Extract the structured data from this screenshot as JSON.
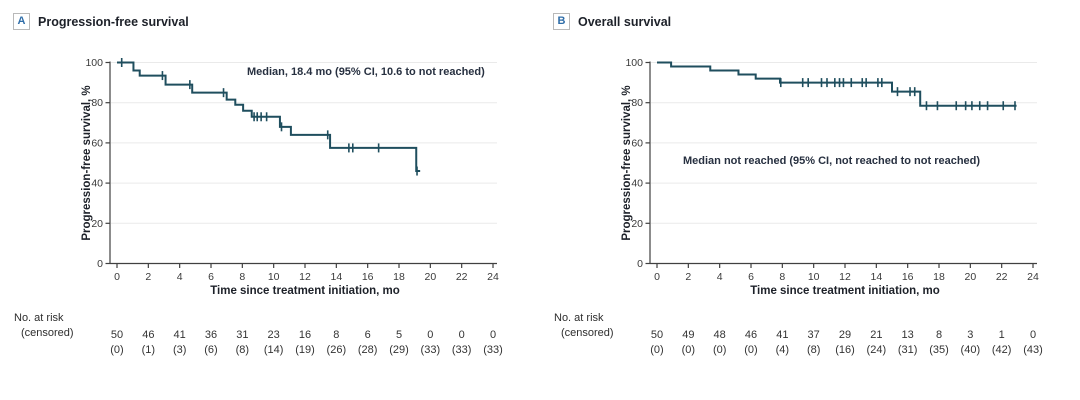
{
  "style": {
    "curve_color": "#1f4e5e",
    "grid_color": "#eaeaea",
    "axis_color": "#404040",
    "tick_text_color": "#3a3a3a",
    "risk_text_color": "#333333",
    "panel_letter_color": "#2f6da8",
    "title_color": "#1d2129",
    "annotation_color": "#273040"
  },
  "chart_data": [
    {
      "type": "line",
      "subtype": "kaplan-meier-step-curve",
      "panel_label": "A",
      "title": "Progression-free survival",
      "annotation": "Median, 18.4 mo (95% CI, 10.6 to not reached)",
      "xlabel": "Time since treatment initiation, mo",
      "ylabel": "Progression-free survival, %",
      "xlim": [
        0,
        24
      ],
      "ylim": [
        0,
        100
      ],
      "xticks": [
        0,
        2,
        4,
        6,
        8,
        10,
        12,
        14,
        16,
        18,
        20,
        22,
        24
      ],
      "yticks": [
        0,
        20,
        40,
        60,
        80,
        100
      ],
      "grid": "horizontal",
      "steps": [
        [
          0,
          100
        ],
        [
          1.05,
          96
        ],
        [
          1.45,
          93.5
        ],
        [
          3.1,
          89
        ],
        [
          4.8,
          85
        ],
        [
          7.0,
          81.5
        ],
        [
          7.55,
          79
        ],
        [
          8.05,
          76
        ],
        [
          8.6,
          73
        ],
        [
          10.4,
          68
        ],
        [
          11.1,
          64
        ],
        [
          13.6,
          57.5
        ],
        [
          19.1,
          46
        ]
      ],
      "curve_end_month": 19.35,
      "censor_marks": [
        [
          0.3,
          100
        ],
        [
          2.9,
          93.5
        ],
        [
          4.65,
          89
        ],
        [
          6.8,
          85
        ],
        [
          8.75,
          73
        ],
        [
          8.95,
          73
        ],
        [
          9.2,
          73
        ],
        [
          9.55,
          73
        ],
        [
          10.5,
          68
        ],
        [
          13.45,
          64
        ],
        [
          14.8,
          57.5
        ],
        [
          15.05,
          57.5
        ],
        [
          16.7,
          57.5
        ],
        [
          19.15,
          46
        ]
      ],
      "risk_label": "No. at risk",
      "censored_label": "(censored)",
      "at_risk": [
        50,
        46,
        41,
        36,
        31,
        23,
        16,
        8,
        6,
        5,
        0,
        0,
        0
      ],
      "censored": [
        "(0)",
        "(1)",
        "(3)",
        "(6)",
        "(8)",
        "(14)",
        "(19)",
        "(26)",
        "(28)",
        "(29)",
        "(33)",
        "(33)",
        "(33)"
      ]
    },
    {
      "type": "line",
      "subtype": "kaplan-meier-step-curve",
      "panel_label": "B",
      "title": "Overall survival",
      "annotation": "Median not reached (95% CI, not reached to not reached)",
      "xlabel": "Time since treatment initiation, mo",
      "ylabel": "Progression-free survival, %",
      "xlim": [
        0,
        24
      ],
      "ylim": [
        0,
        100
      ],
      "xticks": [
        0,
        2,
        4,
        6,
        8,
        10,
        12,
        14,
        16,
        18,
        20,
        22,
        24
      ],
      "yticks": [
        0,
        20,
        40,
        60,
        80,
        100
      ],
      "grid": "horizontal",
      "steps": [
        [
          0,
          100
        ],
        [
          0.9,
          98
        ],
        [
          3.4,
          96
        ],
        [
          5.2,
          94
        ],
        [
          6.3,
          92
        ],
        [
          7.85,
          90
        ],
        [
          15.0,
          85.5
        ],
        [
          16.8,
          78.5
        ]
      ],
      "curve_end_month": 22.95,
      "censor_marks": [
        [
          7.9,
          90
        ],
        [
          9.3,
          90
        ],
        [
          9.65,
          90
        ],
        [
          10.5,
          90
        ],
        [
          10.85,
          90
        ],
        [
          11.35,
          90
        ],
        [
          11.65,
          90
        ],
        [
          11.9,
          90
        ],
        [
          12.4,
          90
        ],
        [
          13.1,
          90
        ],
        [
          13.35,
          90
        ],
        [
          14.1,
          90
        ],
        [
          14.35,
          90
        ],
        [
          15.35,
          85.5
        ],
        [
          16.15,
          85.5
        ],
        [
          16.45,
          85.5
        ],
        [
          17.2,
          78.5
        ],
        [
          17.9,
          78.5
        ],
        [
          19.1,
          78.5
        ],
        [
          19.7,
          78.5
        ],
        [
          20.1,
          78.5
        ],
        [
          20.6,
          78.5
        ],
        [
          21.1,
          78.5
        ],
        [
          22.1,
          78.5
        ],
        [
          22.85,
          78.5
        ]
      ],
      "risk_label": "No. at risk",
      "censored_label": "(censored)",
      "at_risk": [
        50,
        49,
        48,
        46,
        41,
        37,
        29,
        21,
        13,
        8,
        3,
        1,
        0
      ],
      "censored": [
        "(0)",
        "(0)",
        "(0)",
        "(0)",
        "(4)",
        "(8)",
        "(16)",
        "(24)",
        "(31)",
        "(35)",
        "(40)",
        "(42)",
        "(43)"
      ]
    }
  ]
}
